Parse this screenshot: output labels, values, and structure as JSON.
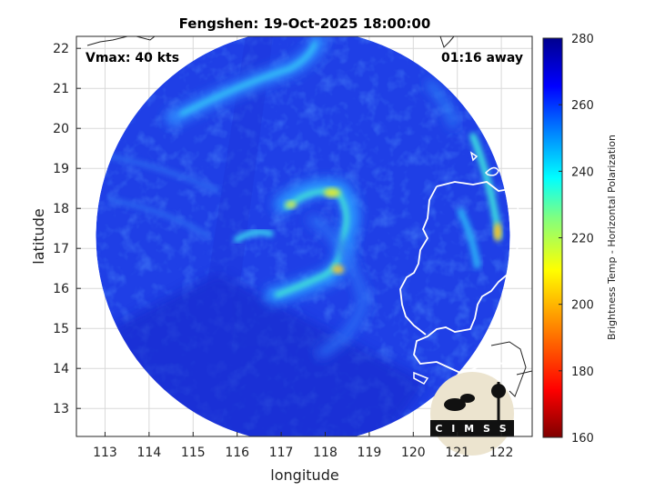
{
  "chart_data": {
    "type": "heatmap",
    "title": "Fengshen: 19-Oct-2025 18:00:00",
    "xlabel": "longitude",
    "ylabel": "latitude",
    "xlim": [
      112.35,
      122.7
    ],
    "ylim": [
      12.3,
      22.3
    ],
    "xticks": [
      113,
      114,
      115,
      116,
      117,
      118,
      119,
      120,
      121,
      122
    ],
    "yticks": [
      13,
      14,
      15,
      16,
      17,
      18,
      19,
      20,
      21,
      22
    ],
    "grid": true,
    "overlay_left": "Vmax: 40 kts",
    "overlay_right": "01:16 away",
    "colorbar": {
      "label": "Brightness Temp - Horizontal Polarization",
      "range": [
        160,
        280
      ],
      "ticks": [
        160,
        180,
        200,
        220,
        240,
        260,
        280
      ],
      "colormap": [
        "#7f0000",
        "#ff0000",
        "#ff8000",
        "#ffff00",
        "#80ff80",
        "#00ffff",
        "#0080ff",
        "#0000ff",
        "#00008f"
      ]
    },
    "swath_center": [
      117.4,
      17.2
    ],
    "swath_radius_deg": 5.15,
    "field_background": 258,
    "features": [
      {
        "name": "cyclone-spiral-band",
        "min_value": 218
      },
      {
        "name": "northern-rainband",
        "min_value": 238
      },
      {
        "name": "luzon-west-coast-band",
        "min_value": 222
      }
    ],
    "logo_text": "CIMSS"
  }
}
